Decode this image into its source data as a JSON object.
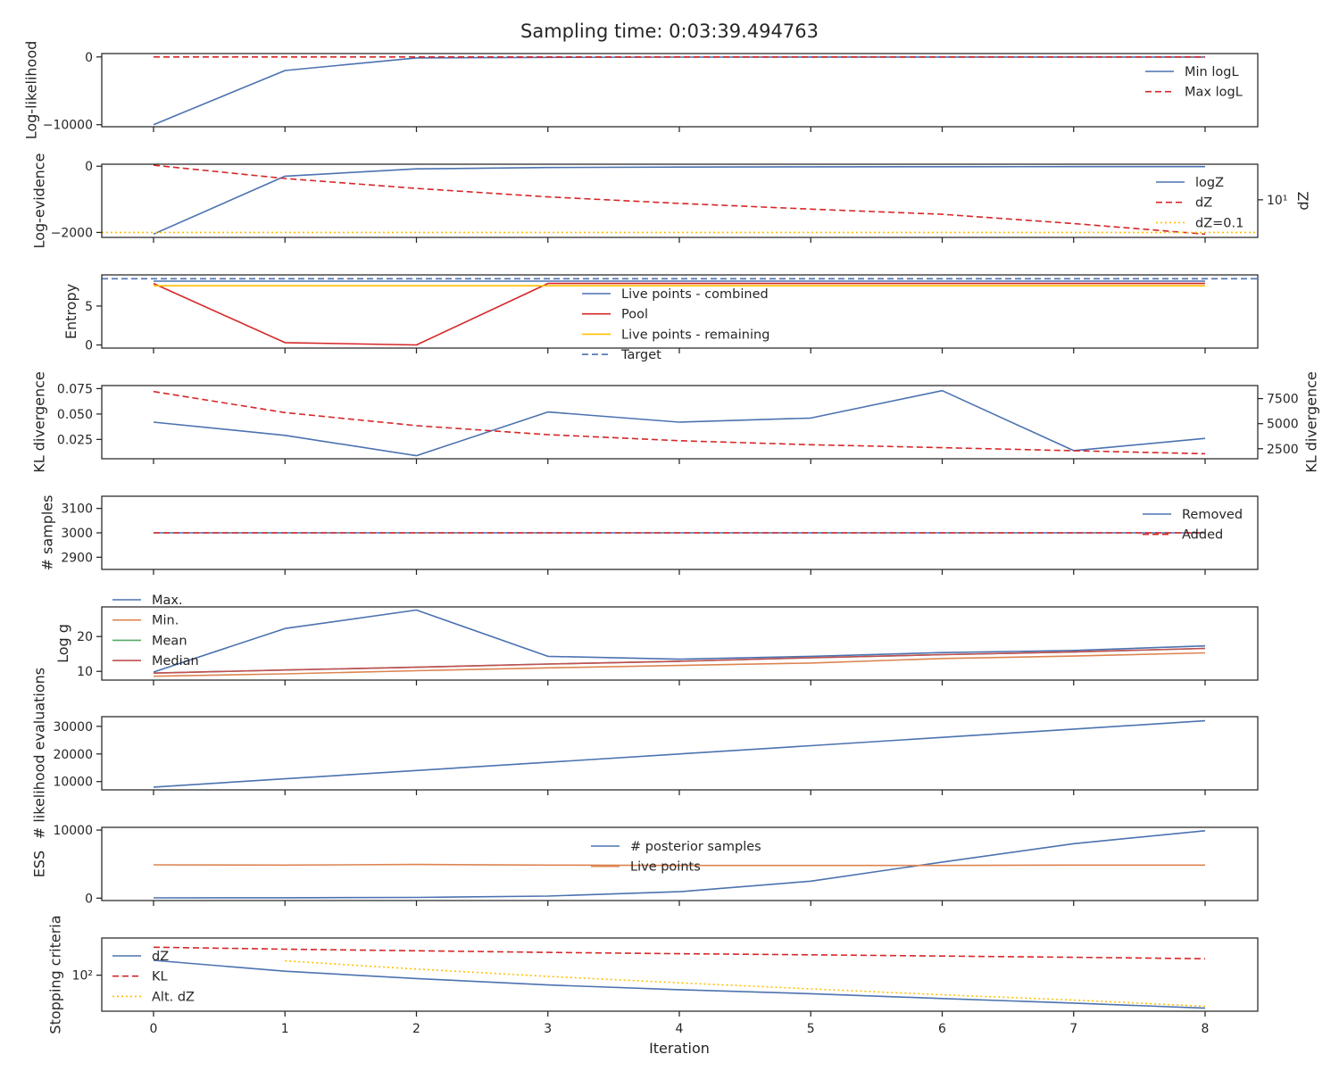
{
  "figure": {
    "title": "Sampling time: 0:03:39.494763",
    "xlabel": "Iteration",
    "x_ticks": [
      "0",
      "1",
      "2",
      "3",
      "4",
      "5",
      "6",
      "7",
      "8"
    ],
    "colors": {
      "blue": "#4c72b0",
      "red": "#d62728",
      "yellow": "#ffc000",
      "orange": "#dd8452",
      "green": "#55a868",
      "maroon": "#c44e52",
      "axes": "#262626"
    }
  },
  "chart_data": [
    {
      "type": "line",
      "ylabel": "Log-likelihood",
      "x": [
        0,
        1,
        2,
        3,
        4,
        5,
        6,
        7,
        8
      ],
      "yticks": [
        {
          "label": "0",
          "v": 0
        },
        {
          "label": "−10000",
          "v": -10000
        }
      ],
      "ylim": [
        -10300,
        500
      ],
      "legend": {
        "loc": "upper-right",
        "entries": [
          "Min logL",
          "Max logL"
        ]
      },
      "series": [
        {
          "name": "Min logL",
          "color": "blue",
          "style": "solid",
          "values": [
            -10000,
            -2000,
            -150,
            -60,
            -30,
            -20,
            -15,
            -12,
            -10
          ]
        },
        {
          "name": "Max logL",
          "color": "red",
          "style": "dashed",
          "values": [
            0,
            0,
            0,
            0,
            0,
            0,
            0,
            0,
            0
          ]
        }
      ]
    },
    {
      "type": "line",
      "ylabel": "Log-evidence",
      "ylabel_right": "dZ",
      "x": [
        0,
        1,
        2,
        3,
        4,
        5,
        6,
        7,
        8
      ],
      "yticks": [
        {
          "label": "0",
          "v": 0
        },
        {
          "label": "−2000",
          "v": -2000
        }
      ],
      "ylim": [
        -2150,
        60
      ],
      "yticks_right": [
        {
          "label": "10¹",
          "v": 10
        }
      ],
      "ylim_right": [
        0.05,
        1500
      ],
      "right_scale": "log",
      "legend": {
        "loc": "right",
        "entries": [
          "logZ",
          "dZ",
          "dZ=0.1"
        ]
      },
      "series": [
        {
          "name": "logZ",
          "axis": "left",
          "color": "blue",
          "style": "solid",
          "values": [
            -2050,
            -300,
            -80,
            -40,
            -25,
            -18,
            -15,
            -13,
            -12
          ]
        },
        {
          "name": "dZ",
          "axis": "right",
          "color": "red",
          "style": "dashed",
          "values": [
            1300,
            200,
            50,
            15,
            6,
            2.7,
            1.3,
            0.35,
            0.08
          ]
        },
        {
          "name": "dZ=0.1",
          "axis": "right",
          "color": "yellow",
          "style": "dotted",
          "hline": 0.1
        }
      ]
    },
    {
      "type": "line",
      "ylabel": "Entropy",
      "x": [
        0,
        1,
        2,
        3,
        4,
        5,
        6,
        7,
        8
      ],
      "yticks": [
        {
          "label": "0",
          "v": 0
        },
        {
          "label": "5",
          "v": 5
        }
      ],
      "ylim": [
        -0.4,
        9
      ],
      "legend": {
        "loc": "center",
        "entries": [
          "Live points - combined",
          "Pool",
          "Live points - remaining",
          "Target"
        ]
      },
      "series": [
        {
          "name": "Live points - combined",
          "color": "blue",
          "style": "solid",
          "values": [
            8.2,
            8.2,
            8.2,
            8.2,
            8.2,
            8.2,
            8.2,
            8.2,
            8.2
          ]
        },
        {
          "name": "Pool",
          "color": "red",
          "style": "solid",
          "values": [
            7.9,
            0.3,
            0.0,
            7.9,
            7.9,
            7.9,
            7.9,
            7.9,
            7.9
          ]
        },
        {
          "name": "Live points - remaining",
          "color": "yellow",
          "style": "solid",
          "values": [
            7.6,
            7.6,
            7.6,
            7.6,
            7.6,
            7.6,
            7.6,
            7.6,
            7.6
          ]
        },
        {
          "name": "Target",
          "color": "blue",
          "style": "dashed",
          "hline": 8.5
        }
      ]
    },
    {
      "type": "line",
      "ylabel": "KL divergence",
      "ylabel_right": "KL divergence",
      "x": [
        0,
        1,
        2,
        3,
        4,
        5,
        6,
        7,
        8
      ],
      "yticks": [
        {
          "label": "0.075",
          "v": 0.075
        },
        {
          "label": "0.050",
          "v": 0.05
        },
        {
          "label": "0.025",
          "v": 0.025
        }
      ],
      "ylim": [
        0.006,
        0.078
      ],
      "yticks_right": [
        {
          "label": "7500",
          "v": 7500
        },
        {
          "label": "5000",
          "v": 5000
        },
        {
          "label": "2500",
          "v": 2500
        }
      ],
      "ylim_right": [
        1500,
        8800
      ],
      "series": [
        {
          "name": "",
          "axis": "left",
          "color": "blue",
          "style": "solid",
          "values": [
            0.042,
            0.029,
            0.009,
            0.052,
            0.042,
            0.046,
            0.073,
            0.014,
            0.026
          ]
        },
        {
          "name": "",
          "axis": "right",
          "color": "red",
          "style": "dashed",
          "values": [
            8200,
            6100,
            4800,
            3900,
            3300,
            2900,
            2600,
            2300,
            2000
          ]
        }
      ]
    },
    {
      "type": "line",
      "ylabel": "# samples",
      "x": [
        0,
        1,
        2,
        3,
        4,
        5,
        6,
        7,
        8
      ],
      "yticks": [
        {
          "label": "3100",
          "v": 3100
        },
        {
          "label": "3000",
          "v": 3000
        },
        {
          "label": "2900",
          "v": 2900
        }
      ],
      "ylim": [
        2850,
        3150
      ],
      "legend": {
        "loc": "upper-right",
        "entries": [
          "Removed",
          "Added"
        ]
      },
      "series": [
        {
          "name": "Removed",
          "color": "blue",
          "style": "solid",
          "values": [
            3000,
            3000,
            3000,
            3000,
            3000,
            3000,
            3000,
            3000,
            3000
          ]
        },
        {
          "name": "Added",
          "color": "red",
          "style": "dashed",
          "values": [
            3000,
            3000,
            3000,
            3000,
            3000,
            3000,
            3000,
            3000,
            3000
          ]
        }
      ]
    },
    {
      "type": "line",
      "ylabel": "Log g",
      "x": [
        0,
        1,
        2,
        3,
        4,
        5,
        6,
        7,
        8
      ],
      "yticks": [
        {
          "label": "20",
          "v": 20
        },
        {
          "label": "10",
          "v": 10
        }
      ],
      "ylim": [
        7.5,
        28.5
      ],
      "legend": {
        "loc": "upper-left-outside",
        "entries": [
          "Max.",
          "Min.",
          "Mean",
          "Median"
        ]
      },
      "series": [
        {
          "name": "Max.",
          "color": "blue",
          "style": "solid",
          "values": [
            9.8,
            22.3,
            27.6,
            14.3,
            13.5,
            14.3,
            15.4,
            16.0,
            17.3
          ]
        },
        {
          "name": "Min.",
          "color": "orange",
          "style": "solid",
          "values": [
            8.6,
            9.3,
            10.2,
            11.0,
            11.7,
            12.4,
            13.7,
            14.4,
            15.3
          ]
        },
        {
          "name": "Mean",
          "color": "green",
          "style": "solid",
          "values": [
            9.5,
            10.4,
            11.2,
            12.1,
            12.9,
            13.9,
            14.8,
            15.6,
            16.6
          ]
        },
        {
          "name": "Median",
          "color": "maroon",
          "style": "solid",
          "values": [
            9.5,
            10.4,
            11.2,
            12.1,
            12.9,
            13.9,
            14.8,
            15.6,
            16.6
          ]
        }
      ]
    },
    {
      "type": "line",
      "ylabel": "# likelihood evaluations",
      "x": [
        0,
        1,
        2,
        3,
        4,
        5,
        6,
        7,
        8
      ],
      "yticks": [
        {
          "label": "30000",
          "v": 30000
        },
        {
          "label": "20000",
          "v": 20000
        },
        {
          "label": "10000",
          "v": 10000
        }
      ],
      "ylim": [
        7000,
        33500
      ],
      "series": [
        {
          "name": "",
          "color": "blue",
          "style": "solid",
          "values": [
            8000,
            11000,
            14000,
            17000,
            20000,
            23000,
            26000,
            29000,
            32000
          ]
        }
      ]
    },
    {
      "type": "line",
      "ylabel": "ESS",
      "x": [
        0,
        1,
        2,
        3,
        4,
        5,
        6,
        7,
        8
      ],
      "yticks": [
        {
          "label": "10000",
          "v": 10000
        },
        {
          "label": "0",
          "v": 0
        }
      ],
      "ylim": [
        -350,
        10400
      ],
      "legend": {
        "loc": "upper-center",
        "entries": [
          "# posterior samples",
          "Live points"
        ]
      },
      "series": [
        {
          "name": "# posterior samples",
          "color": "blue",
          "style": "solid",
          "values": [
            40,
            60,
            110,
            300,
            950,
            2500,
            5300,
            8000,
            9900
          ]
        },
        {
          "name": "Live points",
          "color": "orange",
          "style": "solid",
          "values": [
            4900,
            4850,
            4950,
            4850,
            4800,
            4800,
            4800,
            4850,
            4850
          ]
        }
      ]
    },
    {
      "type": "line",
      "ylabel": "Stopping criteria",
      "x": [
        0,
        1,
        2,
        3,
        4,
        5,
        6,
        7,
        8
      ],
      "yscale": "log",
      "yticks": [
        {
          "label": "10²",
          "v": 100
        }
      ],
      "ylim": [
        9,
        1200
      ],
      "legend": {
        "loc": "upper-left",
        "entries": [
          "dZ",
          "KL",
          "Alt. dZ"
        ]
      },
      "series": [
        {
          "name": "dZ",
          "color": "blue",
          "style": "solid",
          "values": [
            270,
            130,
            80,
            52,
            38,
            29,
            21,
            15.5,
            11
          ]
        },
        {
          "name": "KL",
          "color": "red",
          "style": "dashed",
          "values": [
            650,
            570,
            510,
            460,
            420,
            390,
            360,
            330,
            300
          ]
        },
        {
          "name": "Alt. dZ",
          "x": [
            1,
            2,
            3,
            4,
            5,
            6,
            7,
            8
          ],
          "color": "yellow",
          "style": "dotted",
          "values": [
            260,
            150,
            92,
            60,
            40,
            27,
            19,
            12.5
          ]
        }
      ]
    }
  ]
}
